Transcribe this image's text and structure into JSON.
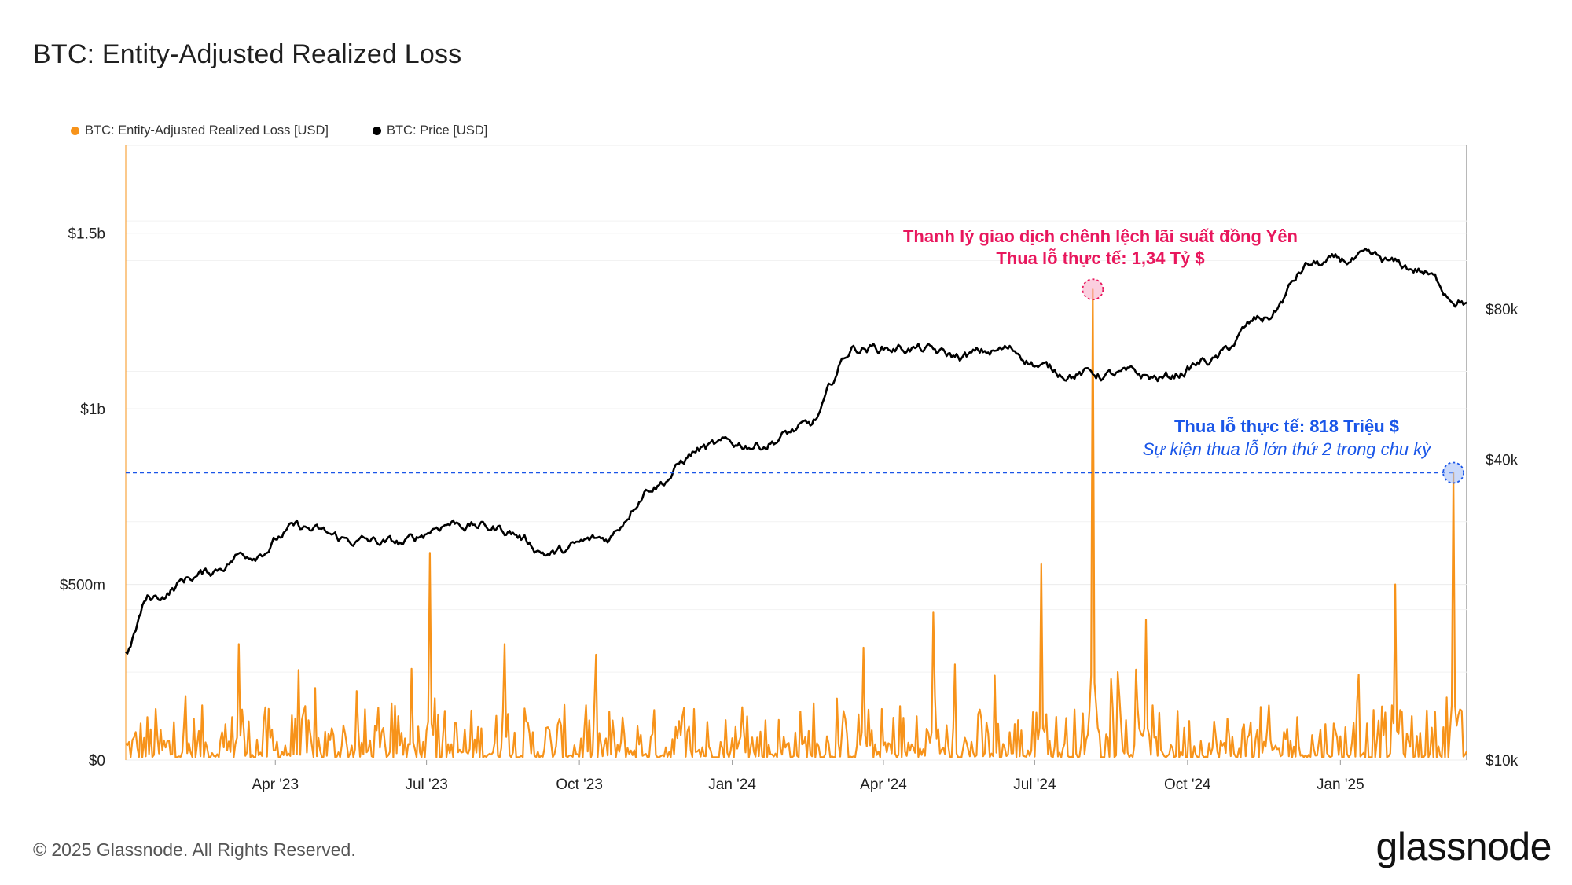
{
  "page": {
    "title": "BTC: Entity-Adjusted Realized Loss",
    "footer": "© 2025 Glassnode. All Rights Reserved.",
    "brand": "glassnode"
  },
  "colors": {
    "loss": "#f7931a",
    "price": "#000000",
    "red": "#e8175d",
    "blue": "#1a56e8",
    "grid": "#ececec"
  },
  "chart_data": {
    "type": "line",
    "legend": [
      {
        "name": "BTC: Entity-Adjusted Realized Loss [USD]",
        "color": "#f7931a"
      },
      {
        "name": "BTC: Price [USD]",
        "color": "#000000"
      }
    ],
    "x_ticks": [
      "Apr '23",
      "Jul '23",
      "Oct '23",
      "Jan '24",
      "Apr '24",
      "Jul '24",
      "Oct '24",
      "Jan '25"
    ],
    "x_range": [
      "2023-01-01",
      "2025-03-18"
    ],
    "y_left": {
      "ticks": [
        "$0",
        "$500m",
        "$1b",
        "$1.5b"
      ],
      "tick_values": [
        0,
        500000000,
        1000000000,
        1500000000
      ],
      "range": [
        0,
        1750000000
      ]
    },
    "y_right": {
      "scale": "log",
      "ticks": [
        "$10k",
        "$40k",
        "$80k"
      ],
      "tick_values": [
        10000,
        40000,
        80000
      ],
      "range": [
        10000,
        170000
      ]
    },
    "price_monthly": [
      {
        "month": "2023-01",
        "value": 21000
      },
      {
        "month": "2023-02",
        "value": 23500
      },
      {
        "month": "2023-03",
        "value": 26000
      },
      {
        "month": "2023-04",
        "value": 29000
      },
      {
        "month": "2023-05",
        "value": 27500
      },
      {
        "month": "2023-06",
        "value": 27000
      },
      {
        "month": "2023-07",
        "value": 30000
      },
      {
        "month": "2023-08",
        "value": 29000
      },
      {
        "month": "2023-09",
        "value": 26000
      },
      {
        "month": "2023-10",
        "value": 27500
      },
      {
        "month": "2023-11",
        "value": 36000
      },
      {
        "month": "2023-12",
        "value": 42000
      },
      {
        "month": "2024-01",
        "value": 43000
      },
      {
        "month": "2024-02",
        "value": 46000
      },
      {
        "month": "2024-03",
        "value": 67000
      },
      {
        "month": "2024-04",
        "value": 67000
      },
      {
        "month": "2024-05",
        "value": 64000
      },
      {
        "month": "2024-06",
        "value": 66000
      },
      {
        "month": "2024-07",
        "value": 60000
      },
      {
        "month": "2024-08",
        "value": 59000
      },
      {
        "month": "2024-09",
        "value": 58000
      },
      {
        "month": "2024-10",
        "value": 63000
      },
      {
        "month": "2024-11",
        "value": 76000
      },
      {
        "month": "2024-12",
        "value": 98000
      },
      {
        "month": "2025-01",
        "value": 100000
      },
      {
        "month": "2025-02",
        "value": 96000
      },
      {
        "month": "2025-03",
        "value": 84000
      }
    ],
    "loss_peaks": [
      {
        "date": "2023-03-10",
        "value": 330000000
      },
      {
        "date": "2023-06-22",
        "value": 260000000
      },
      {
        "date": "2023-07-03",
        "value": 590000000
      },
      {
        "date": "2023-08-17",
        "value": 330000000
      },
      {
        "date": "2024-03-20",
        "value": 320000000
      },
      {
        "date": "2024-05-01",
        "value": 420000000
      },
      {
        "date": "2024-07-05",
        "value": 560000000
      },
      {
        "date": "2024-08-05",
        "value": 1340000000
      },
      {
        "date": "2024-09-06",
        "value": 400000000
      },
      {
        "date": "2025-02-03",
        "value": 500000000
      },
      {
        "date": "2025-03-10",
        "value": 818000000
      }
    ],
    "annotations": [
      {
        "date": "2024-08-05",
        "value": 1340000000,
        "line1": "Thanh lý giao dịch chênh lệch lãi suất đồng Yên",
        "line2": "Thua lỗ thực tế: 1,34 Tỷ $",
        "color": "#e8175d"
      },
      {
        "date": "2025-03-10",
        "value": 818000000,
        "line1": "Thua lỗ thực tế: 818 Triệu $",
        "line2": "Sự kiện thua lỗ lớn thứ 2 trong chu kỳ",
        "color": "#1a56e8"
      }
    ]
  }
}
